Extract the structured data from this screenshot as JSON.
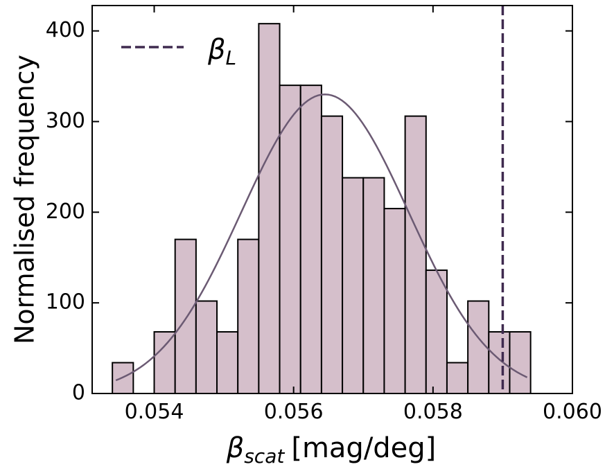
{
  "chart_data": {
    "type": "histogram",
    "bins": [
      0.0534,
      0.0537,
      0.054,
      0.0543,
      0.0546,
      0.0549,
      0.0552,
      0.0555,
      0.0558,
      0.0561,
      0.0564,
      0.0567,
      0.057,
      0.0573,
      0.0576,
      0.0579,
      0.0582,
      0.0585,
      0.0588,
      0.0591,
      0.0594
    ],
    "values": [
      34,
      0,
      68,
      170,
      102,
      68,
      170,
      408,
      340,
      340,
      306,
      238,
      238,
      204,
      306,
      136,
      34,
      102,
      68,
      68
    ],
    "color": "#d5bfcb",
    "edge_color": "#000000",
    "fit": {
      "mean": 0.05645,
      "std": 0.0012,
      "amplitude": 330,
      "x_range": [
        0.05345,
        0.05935
      ],
      "color": "#6b5a73"
    },
    "vline": {
      "x": 0.059,
      "color": "#3f2a4f",
      "legend": {
        "symbol": "β",
        "subscript": "L"
      }
    },
    "xlabel": {
      "symbol": "β",
      "subscript": "scat",
      "unit": "[mag/deg]"
    },
    "ylabel": "Normalised frequency",
    "xlim": [
      0.05311,
      0.06
    ],
    "ylim": [
      0,
      428
    ],
    "xticks": [
      0.054,
      0.056,
      0.058,
      {
        "value": 0.06,
        "label": "0.060"
      }
    ],
    "yticks": [
      0,
      100,
      200,
      300,
      400
    ],
    "legend_position": "upper left"
  }
}
